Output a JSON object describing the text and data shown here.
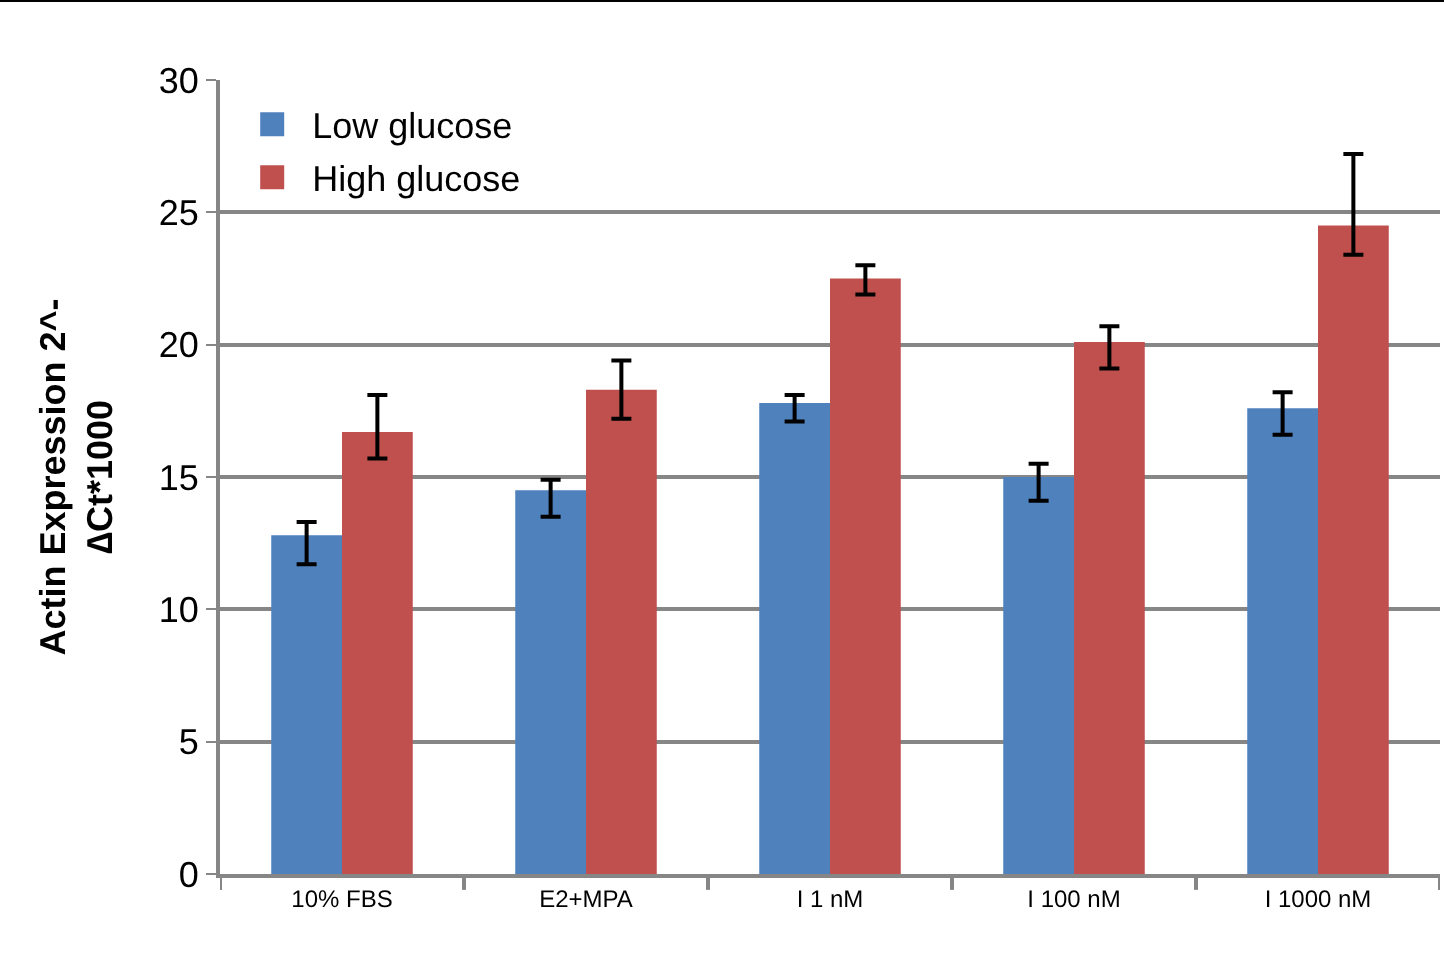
{
  "chart_data": {
    "type": "bar",
    "ylabel": "Actin Expression 2^-\n∆Ct*1000",
    "categories": [
      "10% FBS",
      "E2+MPA",
      "I 1 nM",
      "I 100 nM",
      "I 1000 nM"
    ],
    "series": [
      {
        "name": "Low glucose",
        "color": "#4f81bd",
        "values": [
          12.8,
          14.5,
          17.8,
          15.0,
          17.6
        ],
        "errors": [
          [
            11.7,
            13.3
          ],
          [
            13.5,
            14.9
          ],
          [
            17.1,
            18.1
          ],
          [
            14.1,
            15.5
          ],
          [
            16.6,
            18.2
          ]
        ]
      },
      {
        "name": "High glucose",
        "color": "#c0504d",
        "values": [
          16.7,
          18.3,
          22.5,
          20.1,
          24.5
        ],
        "errors": [
          [
            15.7,
            18.1
          ],
          [
            17.2,
            19.4
          ],
          [
            21.9,
            23.0
          ],
          [
            19.1,
            20.7
          ],
          [
            23.4,
            27.2
          ]
        ]
      }
    ],
    "ylim": [
      0,
      30
    ],
    "yticks": [
      0,
      5,
      10,
      15,
      20,
      25,
      30
    ],
    "grid": "y",
    "legend": "top left"
  }
}
